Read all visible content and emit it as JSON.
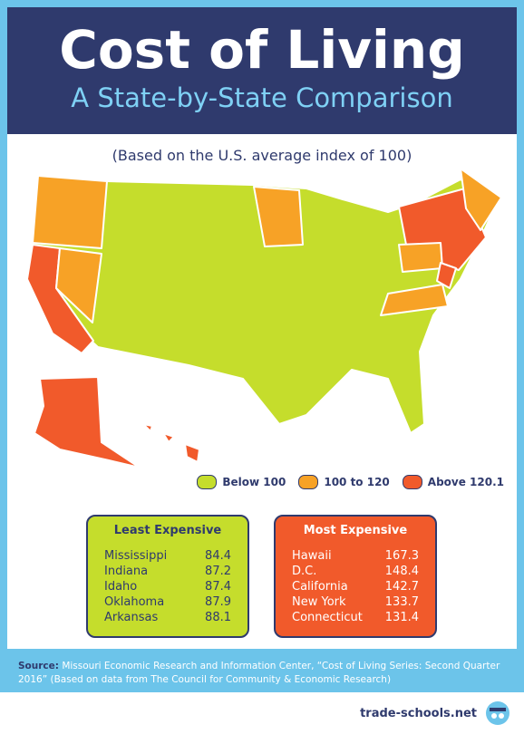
{
  "header": {
    "title": "Cost of Living",
    "subtitle": "A State-by-State Comparison"
  },
  "note": "(Based on the U.S. average index of 100)",
  "legend": [
    {
      "label": "Below 100",
      "color": "#c5dd2c"
    },
    {
      "label": "100 to 120",
      "color": "#f7a226"
    },
    {
      "label": "Above 120.1",
      "color": "#f15a2b"
    }
  ],
  "least": {
    "title": "Least Expensive",
    "rows": [
      [
        "Mississippi",
        84.4
      ],
      [
        "Indiana",
        87.2
      ],
      [
        "Idaho",
        87.4
      ],
      [
        "Oklahoma",
        87.9
      ],
      [
        "Arkansas",
        88.1
      ]
    ]
  },
  "most": {
    "title": "Most Expensive",
    "rows": [
      [
        "Hawaii",
        167.3
      ],
      [
        "D.C.",
        148.4
      ],
      [
        "California",
        142.7
      ],
      [
        "New York",
        133.7
      ],
      [
        "Connecticut",
        131.4
      ]
    ]
  },
  "source": {
    "label": "Source:",
    "text": "Missouri Economic Research and Information Center, “Cost of Living Series: Second Quarter 2016” (Based on data from The Council for Community & Economic Research)"
  },
  "footer": {
    "brand": "trade-schools.net"
  }
}
